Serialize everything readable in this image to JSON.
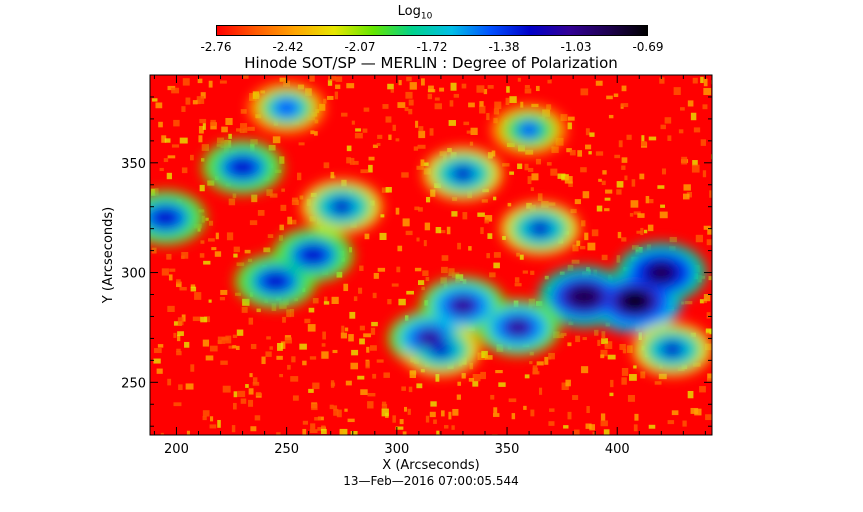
{
  "colorbar": {
    "title_main": "Log",
    "title_sub": "10",
    "ticks": [
      "-2.76",
      "-2.42",
      "-2.07",
      "-1.72",
      "-1.38",
      "-1.03",
      "-0.69"
    ],
    "colors": [
      "#ff0000",
      "#ff5a00",
      "#ffa500",
      "#e6e600",
      "#64e600",
      "#00d28c",
      "#00bee6",
      "#0050ff",
      "#0000c8",
      "#320096",
      "#1e0050",
      "#000000"
    ]
  },
  "title": "Hinode SOT/SP — MERLIN : Degree of Polarization",
  "timestamp": "13—Feb—2016 07:00:05.544",
  "chart_data": {
    "type": "heatmap",
    "title": "Hinode SOT/SP — MERLIN : Degree of Polarization",
    "colorbar_label": "Log10",
    "value_range": [
      -2.76,
      -0.69
    ],
    "xlabel": "X (Arcseconds)",
    "ylabel": "Y (Arcseconds)",
    "xlim": [
      188,
      443
    ],
    "ylim": [
      226,
      390
    ],
    "xticks": [
      200,
      250,
      300,
      350,
      400
    ],
    "yticks": [
      250,
      300,
      350
    ],
    "features": [
      {
        "x": 408,
        "y": 287,
        "level": -0.75
      },
      {
        "x": 385,
        "y": 289,
        "level": -0.85
      },
      {
        "x": 420,
        "y": 300,
        "level": -0.9
      },
      {
        "x": 330,
        "y": 285,
        "level": -1.05
      },
      {
        "x": 315,
        "y": 270,
        "level": -1.1
      },
      {
        "x": 355,
        "y": 275,
        "level": -1.1
      },
      {
        "x": 262,
        "y": 308,
        "level": -1.2
      },
      {
        "x": 245,
        "y": 296,
        "level": -1.2
      },
      {
        "x": 230,
        "y": 348,
        "level": -1.2
      },
      {
        "x": 195,
        "y": 325,
        "level": -1.2
      },
      {
        "x": 275,
        "y": 330,
        "level": -1.25
      },
      {
        "x": 330,
        "y": 345,
        "level": -1.3
      },
      {
        "x": 365,
        "y": 320,
        "level": -1.3
      },
      {
        "x": 320,
        "y": 265,
        "level": -1.3
      },
      {
        "x": 425,
        "y": 265,
        "level": -1.3
      },
      {
        "x": 250,
        "y": 375,
        "level": -1.4
      },
      {
        "x": 360,
        "y": 365,
        "level": -1.45
      }
    ]
  }
}
